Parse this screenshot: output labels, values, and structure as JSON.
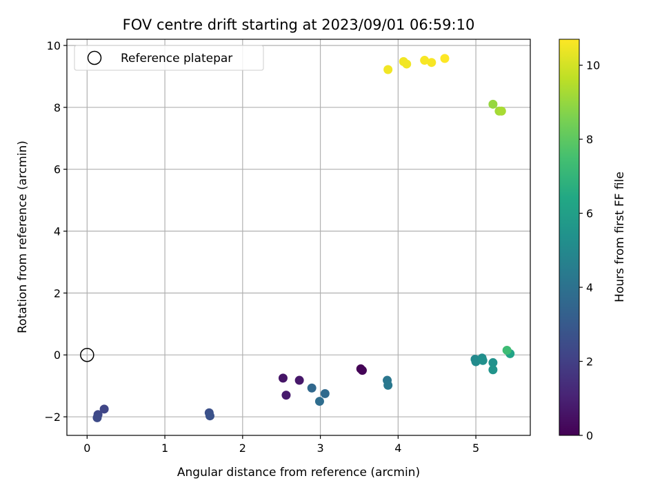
{
  "chart_data": {
    "type": "scatter",
    "title": "FOV centre drift starting at 2023/09/01 06:59:10",
    "xlabel": "Angular distance from reference (arcmin)",
    "ylabel": "Rotation from reference (arcmin)",
    "xlim": [
      -0.26,
      5.7
    ],
    "ylim": [
      -2.6,
      10.2
    ],
    "xticks": [
      0,
      1,
      2,
      3,
      4,
      5
    ],
    "yticks": [
      -2,
      0,
      2,
      4,
      6,
      8,
      10
    ],
    "grid": true,
    "legend": {
      "placement": "top-left",
      "entries": [
        "Reference platepar"
      ]
    },
    "reference_point": {
      "x": 0,
      "y": 0,
      "label": "Reference platepar"
    },
    "colorbar": {
      "label": "Hours from first FF file",
      "colormap": "viridis",
      "range": [
        0,
        10.7
      ],
      "ticks": [
        0,
        2,
        4,
        6,
        8,
        10
      ]
    },
    "points": [
      {
        "x": 3.52,
        "y": -0.45,
        "c": 0.0
      },
      {
        "x": 3.54,
        "y": -0.5,
        "c": 0.1
      },
      {
        "x": 2.52,
        "y": -0.75,
        "c": 0.6
      },
      {
        "x": 2.73,
        "y": -0.82,
        "c": 0.7
      },
      {
        "x": 2.56,
        "y": -1.3,
        "c": 0.8
      },
      {
        "x": 0.22,
        "y": -1.75,
        "c": 2.2
      },
      {
        "x": 0.14,
        "y": -1.93,
        "c": 2.3
      },
      {
        "x": 0.13,
        "y": -2.03,
        "c": 2.4
      },
      {
        "x": 1.57,
        "y": -1.87,
        "c": 2.6
      },
      {
        "x": 1.58,
        "y": -1.97,
        "c": 2.7
      },
      {
        "x": 2.89,
        "y": -1.07,
        "c": 3.6
      },
      {
        "x": 3.06,
        "y": -1.25,
        "c": 3.7
      },
      {
        "x": 2.99,
        "y": -1.5,
        "c": 3.8
      },
      {
        "x": 3.86,
        "y": -0.82,
        "c": 4.2
      },
      {
        "x": 3.87,
        "y": -0.98,
        "c": 4.3
      },
      {
        "x": 4.99,
        "y": -0.14,
        "c": 5.0
      },
      {
        "x": 5.0,
        "y": -0.22,
        "c": 5.1
      },
      {
        "x": 5.08,
        "y": -0.1,
        "c": 5.2
      },
      {
        "x": 5.09,
        "y": -0.18,
        "c": 5.3
      },
      {
        "x": 5.22,
        "y": -0.25,
        "c": 5.4
      },
      {
        "x": 5.22,
        "y": -0.48,
        "c": 5.5
      },
      {
        "x": 5.44,
        "y": 0.04,
        "c": 6.2
      },
      {
        "x": 5.4,
        "y": 0.15,
        "c": 7.3
      },
      {
        "x": 5.22,
        "y": 8.1,
        "c": 9.0
      },
      {
        "x": 5.3,
        "y": 7.88,
        "c": 9.2
      },
      {
        "x": 5.33,
        "y": 7.88,
        "c": 9.3
      },
      {
        "x": 3.87,
        "y": 9.22,
        "c": 10.5
      },
      {
        "x": 4.07,
        "y": 9.48,
        "c": 10.5
      },
      {
        "x": 4.11,
        "y": 9.4,
        "c": 10.5
      },
      {
        "x": 4.34,
        "y": 9.52,
        "c": 10.6
      },
      {
        "x": 4.43,
        "y": 9.45,
        "c": 10.6
      },
      {
        "x": 4.6,
        "y": 9.58,
        "c": 10.7
      }
    ]
  }
}
